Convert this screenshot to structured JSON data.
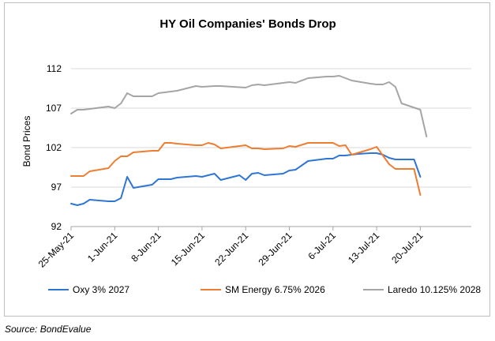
{
  "chart_data": {
    "type": "line",
    "title": "HY Oil Companies' Bonds Drop",
    "xlabel": "",
    "ylabel": "Bond Prices",
    "ylim": [
      92,
      114
    ],
    "yticks": [
      92,
      97,
      102,
      107,
      112
    ],
    "grid": true,
    "legend_position": "bottom",
    "x_domain": [
      0,
      57
    ],
    "x_ticks": [
      {
        "label": "25-May-21",
        "x": 0
      },
      {
        "label": "1-Jun-21",
        "x": 7
      },
      {
        "label": "8-Jun-21",
        "x": 14
      },
      {
        "label": "15-Jun-21",
        "x": 21
      },
      {
        "label": "22-Jun-21",
        "x": 28
      },
      {
        "label": "29-Jun-21",
        "x": 35
      },
      {
        "label": "6-Jul-21",
        "x": 42
      },
      {
        "label": "13-Jul-21",
        "x": 49
      },
      {
        "label": "20-Jul-21",
        "x": 56
      }
    ],
    "series": [
      {
        "name": "Oxy 3% 2027",
        "color": "#2e75d4",
        "points": [
          [
            0,
            94.9
          ],
          [
            1,
            94.7
          ],
          [
            2,
            94.9
          ],
          [
            3,
            95.4
          ],
          [
            6,
            95.2
          ],
          [
            7,
            95.2
          ],
          [
            8,
            95.6
          ],
          [
            9,
            98.3
          ],
          [
            10,
            96.9
          ],
          [
            13,
            97.3
          ],
          [
            14,
            98.0
          ],
          [
            16,
            98.0
          ],
          [
            17,
            98.2
          ],
          [
            20,
            98.4
          ],
          [
            21,
            98.3
          ],
          [
            23,
            98.7
          ],
          [
            24,
            97.9
          ],
          [
            27,
            98.5
          ],
          [
            28,
            97.9
          ],
          [
            29,
            98.7
          ],
          [
            30,
            98.8
          ],
          [
            31,
            98.5
          ],
          [
            34,
            98.7
          ],
          [
            35,
            99.1
          ],
          [
            36,
            99.2
          ],
          [
            38,
            100.3
          ],
          [
            41,
            100.6
          ],
          [
            42,
            100.6
          ],
          [
            43,
            101.0
          ],
          [
            44,
            101.0
          ],
          [
            46,
            101.2
          ],
          [
            48,
            101.3
          ],
          [
            49,
            101.3
          ],
          [
            50,
            101.1
          ],
          [
            51,
            100.7
          ],
          [
            52,
            100.5
          ],
          [
            55,
            100.5
          ],
          [
            56,
            98.3
          ]
        ]
      },
      {
        "name": "SM Energy 6.75% 2026",
        "color": "#ed7d31",
        "points": [
          [
            0,
            98.4
          ],
          [
            2,
            98.4
          ],
          [
            3,
            99.0
          ],
          [
            6,
            99.4
          ],
          [
            7,
            100.3
          ],
          [
            8,
            100.9
          ],
          [
            9,
            100.9
          ],
          [
            10,
            101.4
          ],
          [
            13,
            101.6
          ],
          [
            14,
            101.6
          ],
          [
            15,
            102.6
          ],
          [
            16,
            102.6
          ],
          [
            17,
            102.5
          ],
          [
            20,
            102.3
          ],
          [
            21,
            102.3
          ],
          [
            22,
            102.6
          ],
          [
            23,
            102.4
          ],
          [
            24,
            101.9
          ],
          [
            27,
            102.2
          ],
          [
            28,
            102.3
          ],
          [
            29,
            101.9
          ],
          [
            30,
            101.9
          ],
          [
            31,
            101.8
          ],
          [
            34,
            101.9
          ],
          [
            35,
            102.2
          ],
          [
            36,
            102.1
          ],
          [
            38,
            102.6
          ],
          [
            41,
            102.6
          ],
          [
            42,
            102.6
          ],
          [
            43,
            102.2
          ],
          [
            44,
            102.3
          ],
          [
            45,
            101.1
          ],
          [
            48,
            101.8
          ],
          [
            49,
            102.1
          ],
          [
            50,
            101.0
          ],
          [
            51,
            99.9
          ],
          [
            52,
            99.3
          ],
          [
            55,
            99.3
          ],
          [
            56,
            96.0
          ]
        ]
      },
      {
        "name": "Laredo 10.125% 2028",
        "color": "#a5a5a5",
        "points": [
          [
            0,
            106.3
          ],
          [
            1,
            106.8
          ],
          [
            2,
            106.8
          ],
          [
            6,
            107.2
          ],
          [
            7,
            107.0
          ],
          [
            8,
            107.6
          ],
          [
            9,
            108.9
          ],
          [
            10,
            108.5
          ],
          [
            13,
            108.5
          ],
          [
            14,
            108.9
          ],
          [
            17,
            109.2
          ],
          [
            20,
            109.8
          ],
          [
            21,
            109.7
          ],
          [
            23,
            109.8
          ],
          [
            24,
            109.8
          ],
          [
            28,
            109.6
          ],
          [
            29,
            109.9
          ],
          [
            30,
            110.0
          ],
          [
            31,
            109.9
          ],
          [
            34,
            110.2
          ],
          [
            35,
            110.3
          ],
          [
            36,
            110.2
          ],
          [
            38,
            110.8
          ],
          [
            41,
            111.0
          ],
          [
            42,
            111.0
          ],
          [
            43,
            111.1
          ],
          [
            44,
            110.8
          ],
          [
            45,
            110.5
          ],
          [
            48,
            110.1
          ],
          [
            49,
            110.0
          ],
          [
            50,
            110.0
          ],
          [
            51,
            110.3
          ],
          [
            52,
            109.7
          ],
          [
            53,
            107.6
          ],
          [
            56,
            106.8
          ],
          [
            57,
            103.4
          ]
        ]
      }
    ]
  },
  "source_label": "Source: BondEvalue"
}
